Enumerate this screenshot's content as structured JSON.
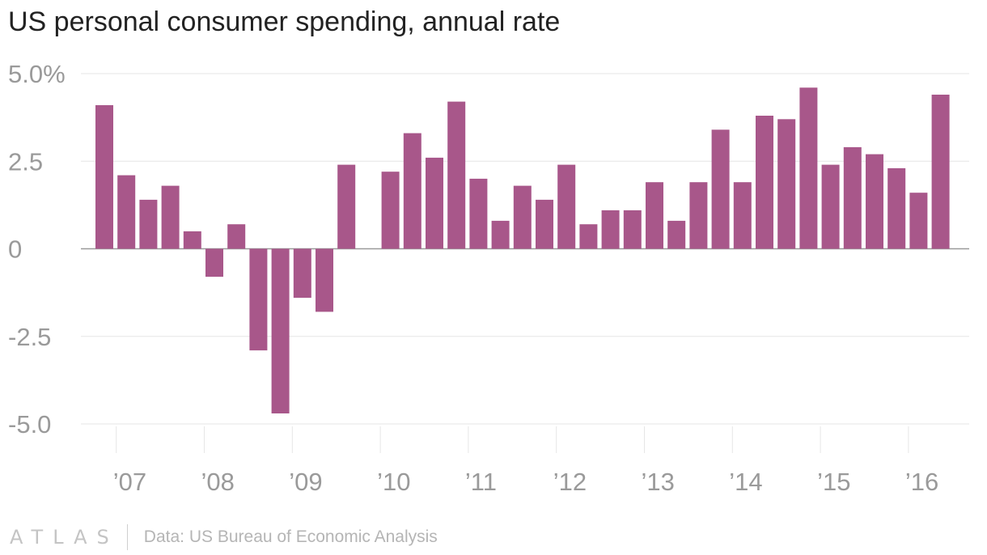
{
  "title": "US personal consumer spending, annual rate",
  "footer": {
    "logo": "ATLAS",
    "source": "Data: US Bureau of Economic Analysis"
  },
  "colors": {
    "bar": "#a8578a",
    "grid": "#e6e6e6",
    "zero": "#9a9a9a",
    "tick": "#9a9a9a"
  },
  "chart_data": {
    "type": "bar",
    "title": "US personal consumer spending, annual rate",
    "xlabel": "",
    "ylabel": "",
    "ylim": [
      -5,
      5
    ],
    "yticks": [
      5,
      2.5,
      0,
      -2.5,
      -5
    ],
    "ytick_labels": [
      "5.0%",
      "2.5",
      "0",
      "-2.5",
      "-5.0"
    ],
    "xtick_labels": [
      "’07",
      "’08",
      "’09",
      "’10",
      "’11",
      "’12",
      "’13",
      "’14",
      "’15",
      "’16"
    ],
    "grid": true,
    "legend": "none",
    "categories": [
      "2006 Q4",
      "2007 Q1",
      "2007 Q2",
      "2007 Q3",
      "2007 Q4",
      "2008 Q1",
      "2008 Q2",
      "2008 Q3",
      "2008 Q4",
      "2009 Q1",
      "2009 Q2",
      "2009 Q3",
      "2009 Q4",
      "2010 Q1",
      "2010 Q2",
      "2010 Q3",
      "2010 Q4",
      "2011 Q1",
      "2011 Q2",
      "2011 Q3",
      "2011 Q4",
      "2012 Q1",
      "2012 Q2",
      "2012 Q3",
      "2012 Q4",
      "2013 Q1",
      "2013 Q2",
      "2013 Q3",
      "2013 Q4",
      "2014 Q1",
      "2014 Q2",
      "2014 Q3",
      "2014 Q4",
      "2015 Q1",
      "2015 Q2",
      "2015 Q3",
      "2015 Q4",
      "2016 Q1",
      "2016 Q2"
    ],
    "values": [
      4.1,
      2.1,
      1.4,
      1.8,
      0.5,
      -0.8,
      0.7,
      -2.9,
      -4.7,
      -1.4,
      -1.8,
      2.4,
      null,
      2.2,
      3.3,
      2.6,
      4.2,
      2.0,
      0.8,
      1.8,
      1.4,
      2.4,
      0.7,
      1.1,
      1.1,
      1.9,
      0.8,
      1.9,
      3.4,
      1.9,
      3.8,
      3.7,
      4.6,
      2.4,
      2.9,
      2.7,
      2.3,
      1.6,
      4.4
    ]
  }
}
